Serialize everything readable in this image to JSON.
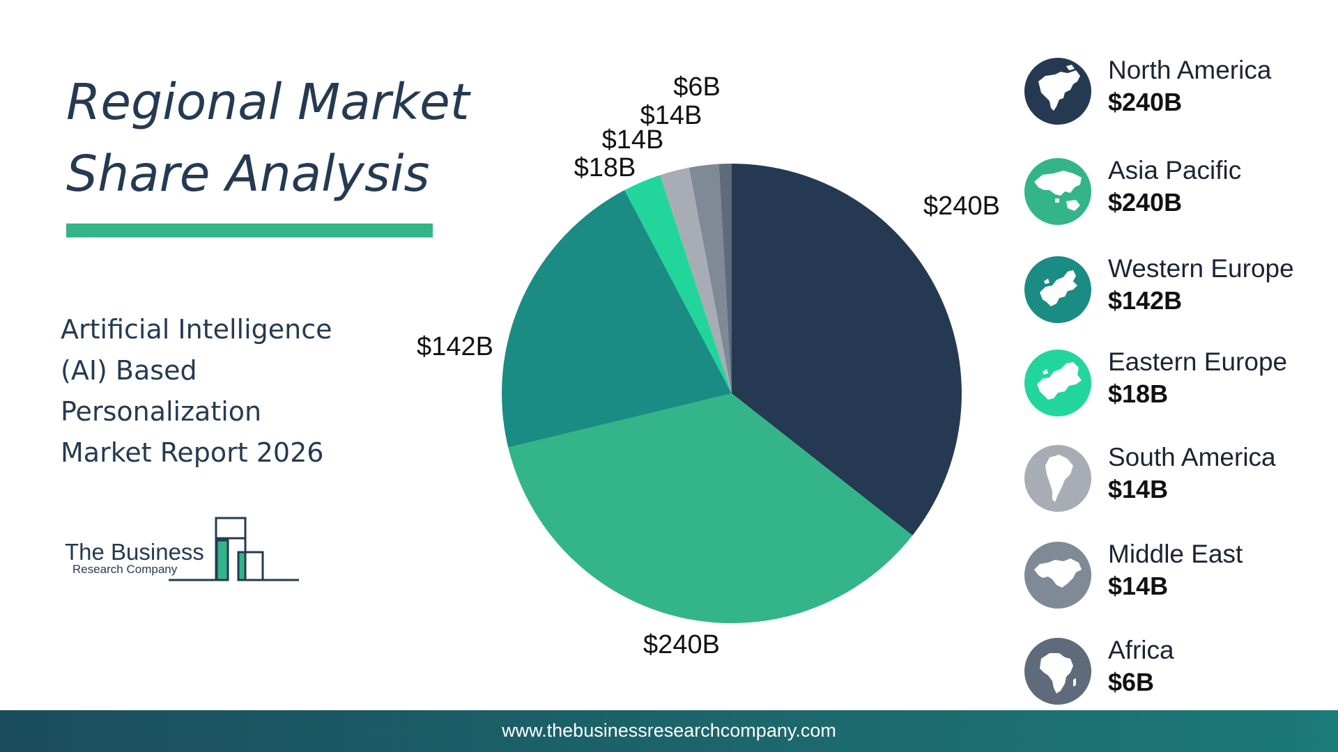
{
  "heading": {
    "line1": "Regional Market",
    "line2": "Share Analysis"
  },
  "report": {
    "line1": "Artificial Intelligence",
    "line2": "(AI) Based",
    "line3": "Personalization",
    "line4": "Market Report 2026"
  },
  "logo": {
    "line1": "The Business",
    "line2": "Research Company"
  },
  "chart_data": {
    "type": "pie",
    "categories": [
      "North America",
      "Asia Pacific",
      "Western Europe",
      "Eastern Europe",
      "South America",
      "Middle East",
      "Africa"
    ],
    "values": [
      240,
      240,
      142,
      18,
      14,
      14,
      6
    ],
    "labels": [
      "$240B",
      "$240B",
      "$142B",
      "$18B",
      "$14B",
      "$14B",
      "$6B"
    ],
    "value_labels": [
      "$240B",
      "$240B",
      "$142B",
      "$18B",
      "$14B",
      "$14B",
      "$6B"
    ],
    "colors": [
      "#253a52",
      "#33b589",
      "#1a8c84",
      "#22d69b",
      "#a8adb5",
      "#7f8a96",
      "#5f6b7a"
    ],
    "start": "12 o'clock",
    "direction": "clockwise",
    "legend_position": "right"
  },
  "legend": [
    {
      "name": "North America",
      "value": "$240B",
      "icon": "north-america-map-icon",
      "color": "#253a52"
    },
    {
      "name": "Asia Pacific",
      "value": "$240B",
      "icon": "asia-pacific-map-icon",
      "color": "#33b589"
    },
    {
      "name": "Western Europe",
      "value": "$142B",
      "icon": "western-europe-map-icon",
      "color": "#1a8c84"
    },
    {
      "name": "Eastern Europe",
      "value": "$18B",
      "icon": "eastern-europe-map-icon",
      "color": "#22d69b"
    },
    {
      "name": "South America",
      "value": "$14B",
      "icon": "south-america-map-icon",
      "color": "#a8adb5"
    },
    {
      "name": "Middle East",
      "value": "$14B",
      "icon": "middle-east-map-icon",
      "color": "#7f8a96"
    },
    {
      "name": "Africa",
      "value": "$6B",
      "icon": "africa-map-icon",
      "color": "#5f6b7a"
    }
  ],
  "footer": {
    "url": "www.thebusinessresearchcompany.com"
  }
}
